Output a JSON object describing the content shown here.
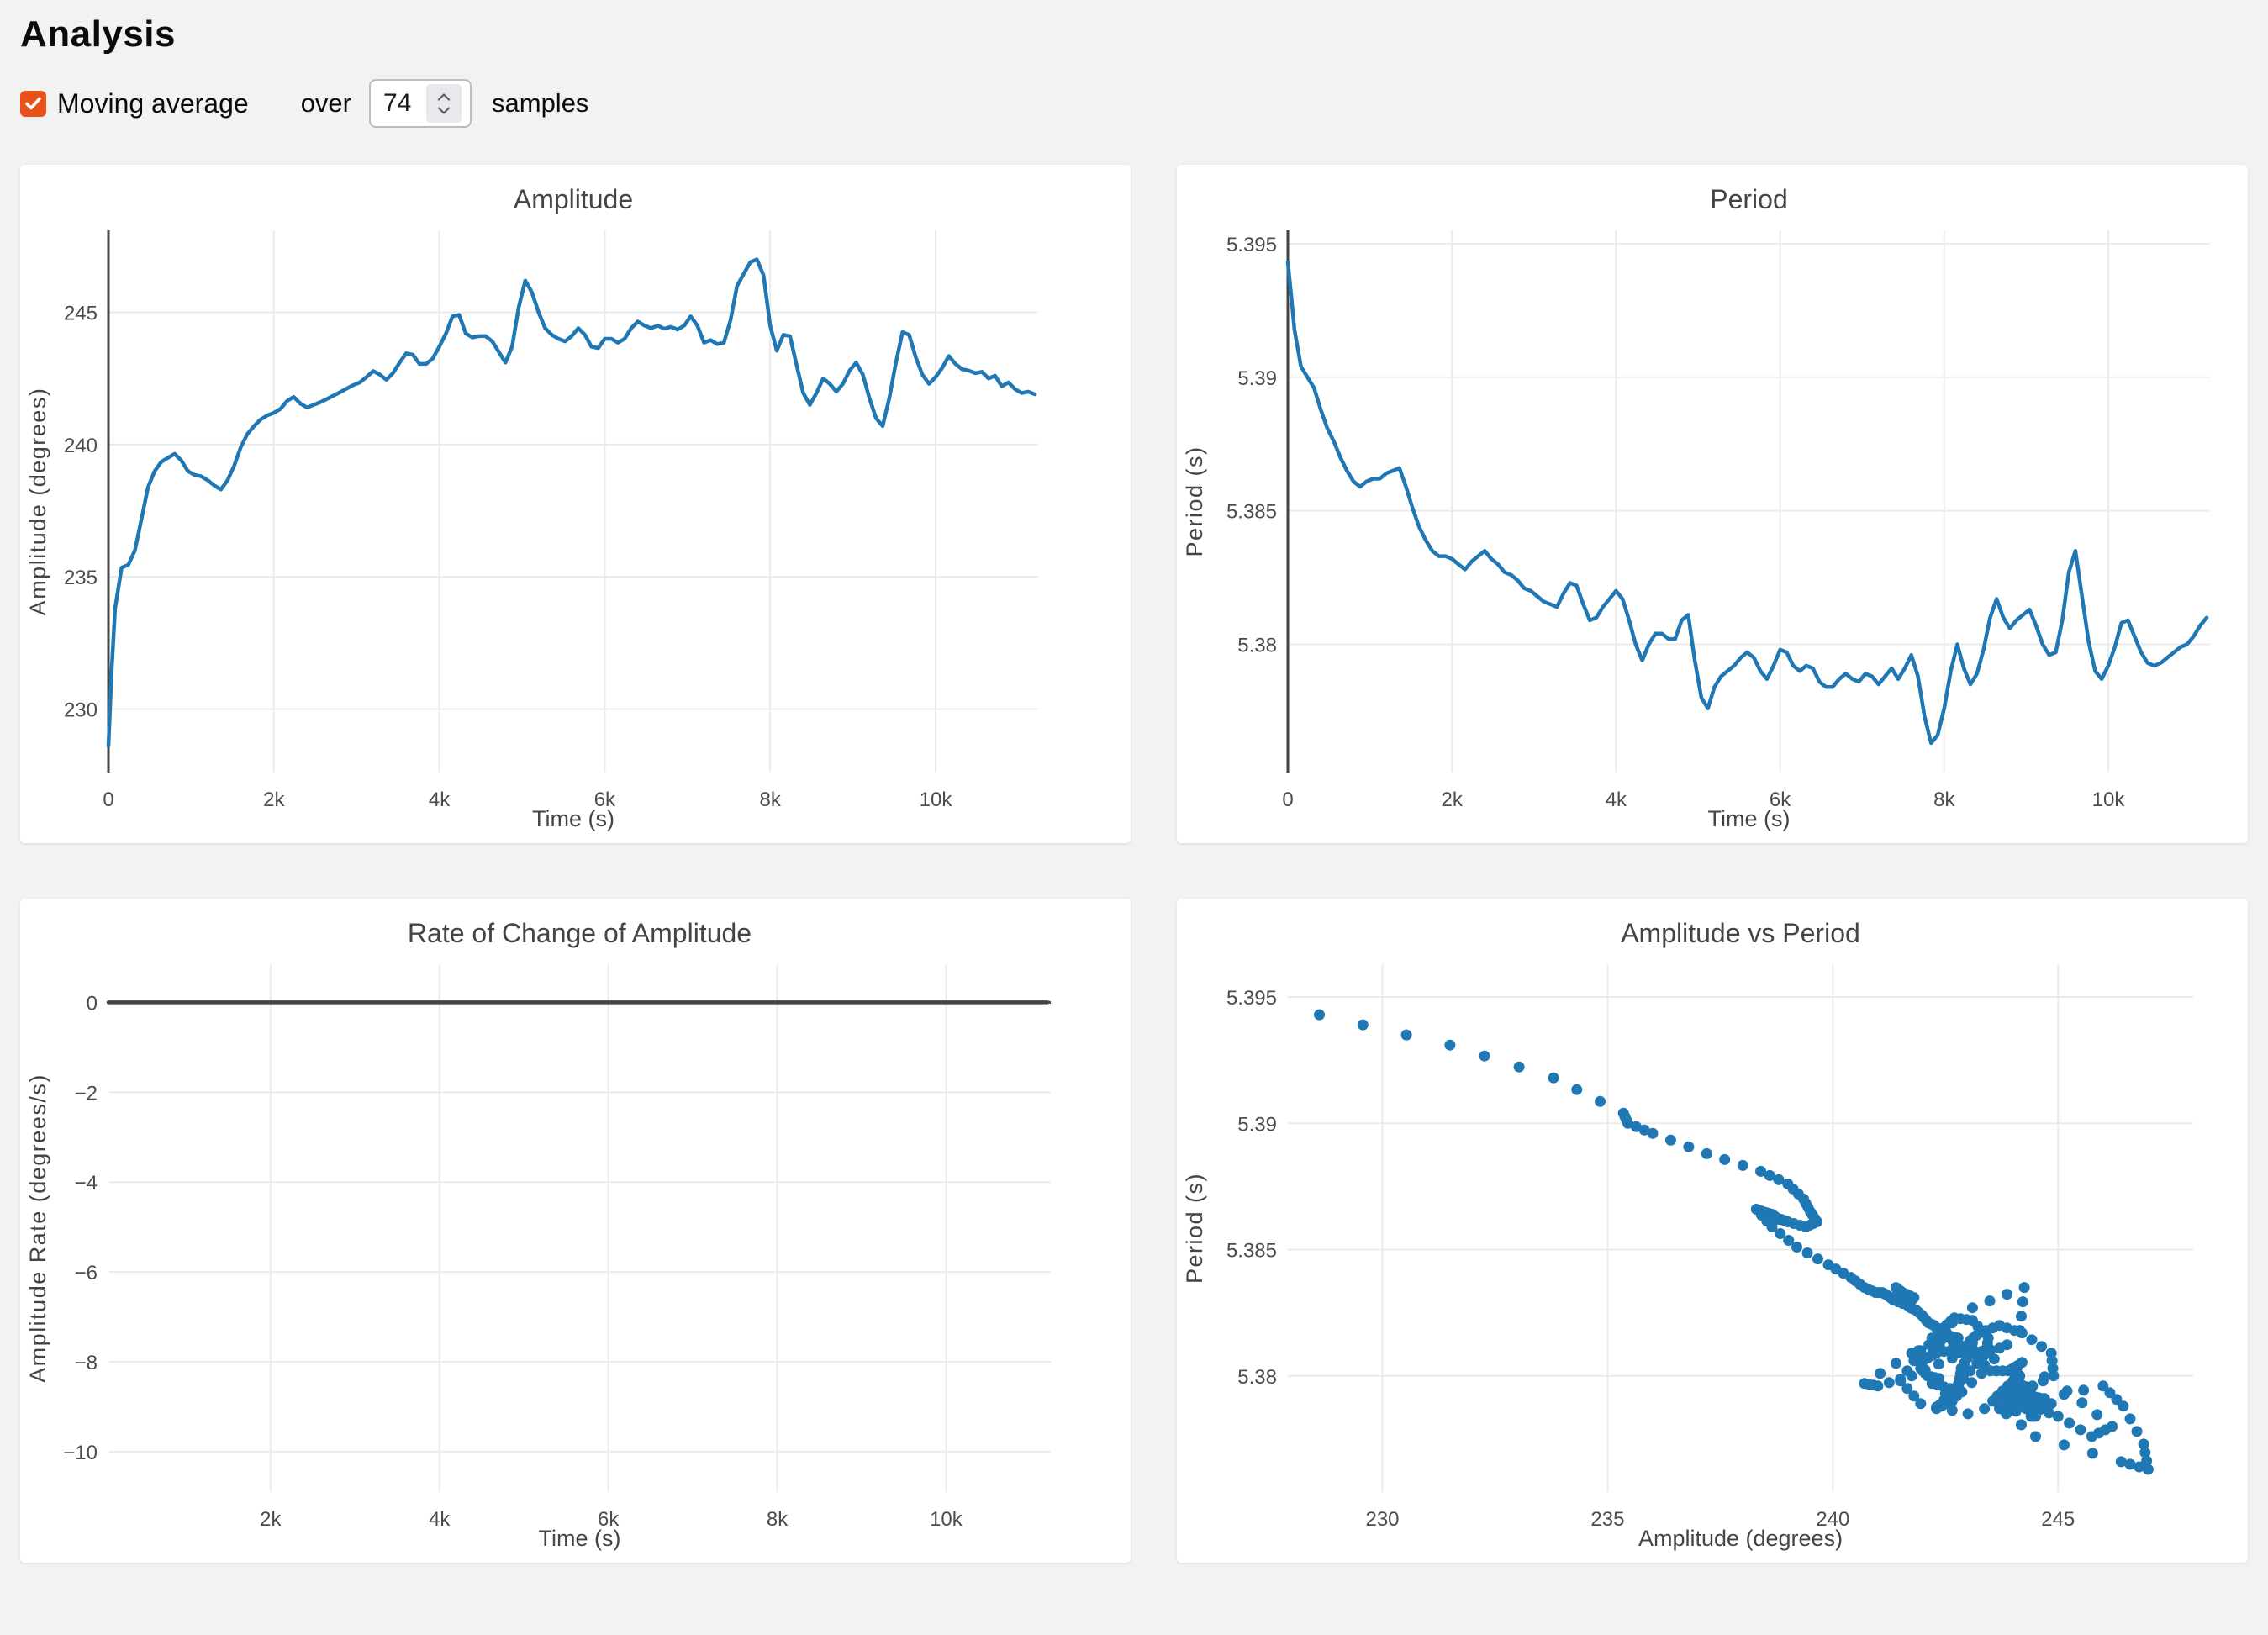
{
  "page": {
    "title": "Analysis"
  },
  "controls": {
    "moving_average_label": "Moving average",
    "moving_average_checked": true,
    "over_label": "over",
    "samples_value": "74",
    "samples_label": "samples"
  },
  "colors": {
    "accent_blue": "#1f77b4",
    "checkbox_orange": "#e8521a",
    "zeroline": "#444444",
    "grid": "#ebebeb",
    "tick_text": "#4c4c4c",
    "title_text": "#444444",
    "page_bg": "#f2f2f3",
    "card_bg": "#ffffff"
  },
  "chart_data": [
    {
      "type": "line",
      "title": "Amplitude",
      "xlabel": "Time (s)",
      "ylabel": "Amplitude (degrees)",
      "xlim": [
        0,
        11240
      ],
      "ylim": [
        227.6,
        248.1
      ],
      "xtick_vals": [
        0,
        2000,
        4000,
        6000,
        8000,
        10000
      ],
      "xtick_labels": [
        "0",
        "2k",
        "4k",
        "6k",
        "8k",
        "10k"
      ],
      "ytick_vals": [
        230,
        235,
        240,
        245
      ],
      "ytick_labels": [
        "230",
        "235",
        "240",
        "245"
      ],
      "zeroline_x": true,
      "zeroline_y": false,
      "line_color": "#1f77b4",
      "x": [
        0,
        40,
        80,
        160,
        240,
        320,
        400,
        480,
        560,
        640,
        720,
        800,
        880,
        960,
        1040,
        1120,
        1200,
        1280,
        1360,
        1440,
        1520,
        1600,
        1680,
        1760,
        1840,
        1920,
        2000,
        2080,
        2160,
        2240,
        2320,
        2400,
        2480,
        2560,
        2640,
        2720,
        2800,
        2880,
        2960,
        3040,
        3120,
        3200,
        3280,
        3360,
        3440,
        3520,
        3600,
        3680,
        3760,
        3840,
        3920,
        4000,
        4080,
        4160,
        4240,
        4320,
        4400,
        4480,
        4560,
        4640,
        4720,
        4800,
        4880,
        4960,
        5040,
        5120,
        5200,
        5280,
        5360,
        5440,
        5520,
        5600,
        5680,
        5760,
        5840,
        5920,
        6000,
        6080,
        6160,
        6240,
        6320,
        6400,
        6480,
        6560,
        6640,
        6720,
        6800,
        6880,
        6960,
        7040,
        7120,
        7200,
        7280,
        7360,
        7440,
        7520,
        7600,
        7680,
        7760,
        7840,
        7920,
        8000,
        8080,
        8160,
        8240,
        8320,
        8400,
        8480,
        8560,
        8640,
        8720,
        8800,
        8880,
        8960,
        9040,
        9120,
        9200,
        9280,
        9360,
        9440,
        9520,
        9600,
        9680,
        9760,
        9840,
        9920,
        10000,
        10080,
        10160,
        10240,
        10320,
        10400,
        10480,
        10560,
        10640,
        10720,
        10800,
        10880,
        10960,
        11040,
        11120,
        11200
      ],
      "y": [
        228.6,
        231.5,
        233.8,
        235.35,
        235.45,
        236.0,
        237.2,
        238.4,
        239.0,
        239.35,
        239.5,
        239.65,
        239.4,
        239.0,
        238.85,
        238.8,
        238.65,
        238.45,
        238.3,
        238.65,
        239.2,
        239.9,
        240.4,
        240.7,
        240.95,
        241.1,
        241.2,
        241.35,
        241.65,
        241.8,
        241.55,
        241.4,
        241.5,
        241.6,
        241.72,
        241.85,
        241.98,
        242.12,
        242.25,
        242.35,
        242.55,
        242.78,
        242.65,
        242.45,
        242.7,
        243.1,
        243.45,
        243.4,
        243.05,
        243.05,
        243.25,
        243.7,
        244.2,
        244.85,
        244.9,
        244.2,
        244.05,
        244.1,
        244.1,
        243.9,
        243.5,
        243.1,
        243.7,
        245.2,
        246.2,
        245.75,
        245.0,
        244.4,
        244.15,
        244.0,
        243.9,
        244.1,
        244.4,
        244.15,
        243.7,
        243.65,
        244.0,
        244.0,
        243.85,
        244.0,
        244.4,
        244.65,
        244.5,
        244.4,
        244.5,
        244.38,
        244.45,
        244.35,
        244.5,
        244.85,
        244.5,
        243.85,
        243.95,
        243.8,
        243.85,
        244.7,
        246.0,
        246.45,
        246.9,
        247.0,
        246.4,
        244.5,
        243.55,
        244.15,
        244.1,
        243.0,
        241.95,
        241.5,
        241.95,
        242.5,
        242.3,
        242.0,
        242.3,
        242.8,
        243.1,
        242.65,
        241.75,
        241.0,
        240.7,
        241.75,
        243.1,
        244.25,
        244.15,
        243.3,
        242.65,
        242.3,
        242.55,
        242.9,
        243.35,
        243.05,
        242.85,
        242.8,
        242.7,
        242.75,
        242.5,
        242.6,
        242.2,
        242.35,
        242.1,
        241.95,
        242.0,
        241.9
      ]
    },
    {
      "type": "line",
      "title": "Period",
      "xlabel": "Time (s)",
      "ylabel": "Period (s)",
      "xlim": [
        0,
        11240
      ],
      "ylim": [
        5.3752,
        5.3955
      ],
      "xtick_vals": [
        0,
        2000,
        4000,
        6000,
        8000,
        10000
      ],
      "xtick_labels": [
        "0",
        "2k",
        "4k",
        "6k",
        "8k",
        "10k"
      ],
      "ytick_vals": [
        5.38,
        5.385,
        5.39,
        5.395
      ],
      "ytick_labels": [
        "5.38",
        "5.385",
        "5.39",
        "5.395"
      ],
      "zeroline_x": true,
      "zeroline_y": false,
      "line_color": "#1f77b4",
      "x": [
        0,
        40,
        80,
        160,
        240,
        320,
        400,
        480,
        560,
        640,
        720,
        800,
        880,
        960,
        1040,
        1120,
        1200,
        1280,
        1360,
        1440,
        1520,
        1600,
        1680,
        1760,
        1840,
        1920,
        2000,
        2080,
        2160,
        2240,
        2320,
        2400,
        2480,
        2560,
        2640,
        2720,
        2800,
        2880,
        2960,
        3040,
        3120,
        3200,
        3280,
        3360,
        3440,
        3520,
        3600,
        3680,
        3760,
        3840,
        3920,
        4000,
        4080,
        4160,
        4240,
        4320,
        4400,
        4480,
        4560,
        4640,
        4720,
        4800,
        4880,
        4960,
        5040,
        5120,
        5200,
        5280,
        5360,
        5440,
        5520,
        5600,
        5680,
        5760,
        5840,
        5920,
        6000,
        6080,
        6160,
        6240,
        6320,
        6400,
        6480,
        6560,
        6640,
        6720,
        6800,
        6880,
        6960,
        7040,
        7120,
        7200,
        7280,
        7360,
        7440,
        7520,
        7600,
        7680,
        7760,
        7840,
        7920,
        8000,
        8080,
        8160,
        8240,
        8320,
        8400,
        8480,
        8560,
        8640,
        8720,
        8800,
        8880,
        8960,
        9040,
        9120,
        9200,
        9280,
        9360,
        9440,
        9520,
        9600,
        9680,
        9760,
        9840,
        9920,
        10000,
        10080,
        10160,
        10240,
        10320,
        10400,
        10480,
        10560,
        10640,
        10720,
        10800,
        10880,
        10960,
        11040,
        11120,
        11200
      ],
      "y": [
        5.3943,
        5.3931,
        5.3918,
        5.3904,
        5.39,
        5.3896,
        5.3888,
        5.3881,
        5.3876,
        5.387,
        5.3865,
        5.3861,
        5.3859,
        5.3861,
        5.3862,
        5.3862,
        5.3864,
        5.3865,
        5.3866,
        5.3859,
        5.3851,
        5.3844,
        5.3839,
        5.3835,
        5.3833,
        5.3833,
        5.3832,
        5.383,
        5.3828,
        5.3831,
        5.3833,
        5.3835,
        5.3832,
        5.383,
        5.3827,
        5.3826,
        5.3824,
        5.3821,
        5.382,
        5.3818,
        5.3816,
        5.3815,
        5.3814,
        5.3819,
        5.3823,
        5.3822,
        5.3815,
        5.3809,
        5.381,
        5.3814,
        5.3817,
        5.382,
        5.3817,
        5.3809,
        5.38,
        5.3794,
        5.38,
        5.3804,
        5.3804,
        5.3802,
        5.3802,
        5.3809,
        5.3811,
        5.3794,
        5.378,
        5.3776,
        5.3784,
        5.3788,
        5.379,
        5.3792,
        5.3795,
        5.3797,
        5.3795,
        5.379,
        5.3787,
        5.3792,
        5.3798,
        5.3797,
        5.3792,
        5.379,
        5.3792,
        5.3791,
        5.3786,
        5.3784,
        5.3784,
        5.3787,
        5.3789,
        5.3787,
        5.3786,
        5.3789,
        5.3788,
        5.3785,
        5.3788,
        5.3791,
        5.3787,
        5.3791,
        5.3796,
        5.3788,
        5.3773,
        5.3763,
        5.3766,
        5.3776,
        5.379,
        5.38,
        5.3791,
        5.3785,
        5.3789,
        5.3798,
        5.381,
        5.3817,
        5.381,
        5.3806,
        5.3809,
        5.3811,
        5.3813,
        5.3807,
        5.38,
        5.3796,
        5.3797,
        5.3809,
        5.3827,
        5.3835,
        5.3818,
        5.3801,
        5.379,
        5.3787,
        5.3792,
        5.3799,
        5.3808,
        5.3809,
        5.3803,
        5.3797,
        5.3793,
        5.3792,
        5.3793,
        5.3795,
        5.3797,
        5.3799,
        5.38,
        5.3803,
        5.3807,
        5.381
      ]
    },
    {
      "type": "line",
      "title": "Rate of Change of Amplitude",
      "xlabel": "Time (s)",
      "ylabel": "Amplitude Rate (degrees/s)",
      "xlim": [
        80,
        11240
      ],
      "ylim": [
        -10.9,
        0.85
      ],
      "xtick_vals": [
        2000,
        4000,
        6000,
        8000,
        10000
      ],
      "xtick_labels": [
        "2k",
        "4k",
        "6k",
        "8k",
        "10k"
      ],
      "ytick_vals": [
        0,
        -2,
        -4,
        -6,
        -8,
        -10
      ],
      "ytick_labels": [
        "0",
        "−2",
        "−4",
        "−6",
        "−8",
        "−10"
      ],
      "zeroline_x": false,
      "zeroline_y": true,
      "line_color": "#444444",
      "x": [
        80,
        11200
      ],
      "y": [
        0,
        0
      ]
    },
    {
      "type": "scatter",
      "title": "Amplitude vs Period",
      "xlabel": "Amplitude (degrees)",
      "ylabel": "Period (s)",
      "xlim": [
        227.9,
        248.0
      ],
      "ylim": [
        5.3754,
        5.3963
      ],
      "xtick_vals": [
        230,
        235,
        240,
        245
      ],
      "xtick_labels": [
        "230",
        "235",
        "240",
        "245"
      ],
      "ytick_vals": [
        5.38,
        5.385,
        5.39,
        5.395
      ],
      "ytick_labels": [
        "5.38",
        "5.385",
        "5.39",
        "5.395"
      ],
      "zeroline_x": false,
      "zeroline_y": false,
      "marker_color": "#1f77b4",
      "points_from": {
        "x_series": 0,
        "y_series": 1
      },
      "note": "each marker pairs amplitude[i] (series 0) with period[i] (series 1) at the same time sample"
    }
  ]
}
